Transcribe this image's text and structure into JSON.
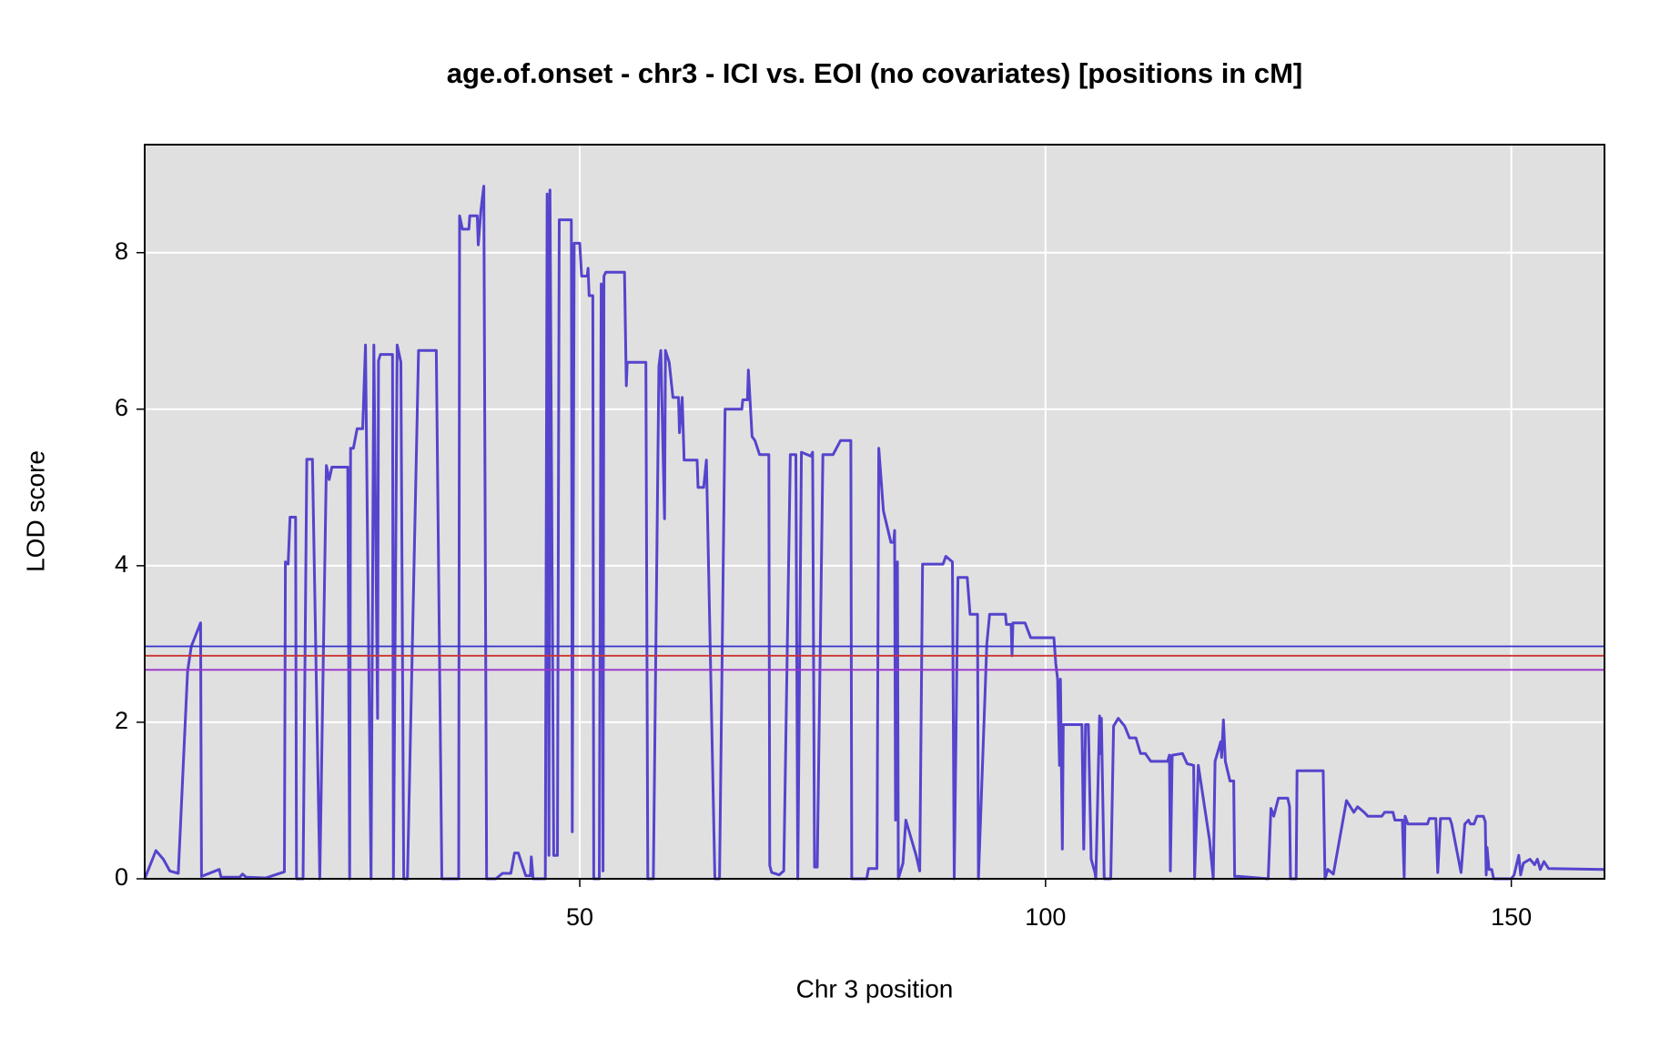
{
  "chart_data": {
    "type": "line",
    "title": "age.of.onset - chr3 - ICI vs. EOI (no covariates) [positions in cM]",
    "x_label": "Chr 3 position",
    "y_label": "LOD score",
    "xlim": [
      3.3,
      160
    ],
    "ylim": [
      0,
      9.38
    ],
    "xticks": [
      50,
      100,
      150
    ],
    "yticks": [
      0,
      2,
      4,
      6,
      8
    ],
    "grid": true,
    "color": "#5544cc",
    "hlines": [
      {
        "value": 2.97,
        "color": "#3333cc"
      },
      {
        "value": 2.85,
        "color": "#cc3333"
      },
      {
        "value": 2.67,
        "color": "#9933cc"
      }
    ],
    "x": [
      3.3,
      4.5,
      5.3,
      6.0,
      6.9,
      7.9,
      8.3,
      9.3,
      9.4,
      11.3,
      11.5,
      13.5,
      13.8,
      14.2,
      16.3,
      18.3,
      18.4,
      18.7,
      18.9,
      19.5,
      19.6,
      20.3,
      20.7,
      21.3,
      22.1,
      22.8,
      23.1,
      23.4,
      25.1,
      25.3,
      25.4,
      25.7,
      26.1,
      26.7,
      27.0,
      27.6,
      27.9,
      28.3,
      28.4,
      28.6,
      29.9,
      30.0,
      30.4,
      30.8,
      31.1,
      31.5,
      32.7,
      34.6,
      35.2,
      37.0,
      37.1,
      37.4,
      38.1,
      38.2,
      39.0,
      39.1,
      39.4,
      39.7,
      40.0,
      41.0,
      41.7,
      42.6,
      43.0,
      43.4,
      44.2,
      44.7,
      44.8,
      45.0,
      46.3,
      46.5,
      46.7,
      46.8,
      47.2,
      47.6,
      47.8,
      49.1,
      49.2,
      49.4,
      50.0,
      50.2,
      50.8,
      50.9,
      51.0,
      51.4,
      51.5,
      52.1,
      52.3,
      52.4,
      52.5,
      52.6,
      52.8,
      54.8,
      55.0,
      55.1,
      57.1,
      57.3,
      57.9,
      58.5,
      58.7,
      59.1,
      59.2,
      59.6,
      60.0,
      60.6,
      60.7,
      61.0,
      61.2,
      62.6,
      62.7,
      63.3,
      63.6,
      64.5,
      65.0,
      65.6,
      67.4,
      67.5,
      68.0,
      68.1,
      68.5,
      68.8,
      69.3,
      70.3,
      70.4,
      70.6,
      71.4,
      71.9,
      72.6,
      73.2,
      73.4,
      73.8,
      74.8,
      75.0,
      75.2,
      75.5,
      76.1,
      77.2,
      78.0,
      79.1,
      79.2,
      80.8,
      81.0,
      81.9,
      82.1,
      82.6,
      83.4,
      83.7,
      83.8,
      83.9,
      84.1,
      84.2,
      84.7,
      85.0,
      86.1,
      86.5,
      86.8,
      89.0,
      89.3,
      90.0,
      90.2,
      90.6,
      91.6,
      91.9,
      92.7,
      92.8,
      93.7,
      94.0,
      95.7,
      95.8,
      96.3,
      96.4,
      96.5,
      97.8,
      98.4,
      100.9,
      101.1,
      101.3,
      101.5,
      101.6,
      101.8,
      101.9,
      103.9,
      104.1,
      104.3,
      104.6,
      104.9,
      105.3,
      105.4,
      105.8,
      105.9,
      106.0,
      106.3,
      107.0,
      107.3,
      107.8,
      108.5,
      109.0,
      109.7,
      110.2,
      110.7,
      111.3,
      113.1,
      113.3,
      113.4,
      113.6,
      114.7,
      115.2,
      115.9,
      116.0,
      116.4,
      117.6,
      118.0,
      118.2,
      118.8,
      118.9,
      119.1,
      119.3,
      119.8,
      120.2,
      120.3,
      120.8,
      123.9,
      124.2,
      124.5,
      125.0,
      126.0,
      126.2,
      126.3,
      126.9,
      127.0,
      129.8,
      130.0,
      130.3,
      130.9,
      132.3,
      133.1,
      133.5,
      134.2,
      134.6,
      136.1,
      136.4,
      137.3,
      137.5,
      138.3,
      138.5,
      138.6,
      138.9,
      141.0,
      141.2,
      141.9,
      142.1,
      142.4,
      143.4,
      143.6,
      144.6,
      145.0,
      145.4,
      145.6,
      146.0,
      146.3,
      147.0,
      147.2,
      147.3,
      147.4,
      147.6,
      147.9,
      148.1,
      150.0,
      150.3,
      150.8,
      151.0,
      151.3,
      152.0,
      152.5,
      152.8,
      153.1,
      153.5,
      154.0,
      160.0
    ],
    "values": [
      0,
      0.36,
      0.25,
      0.1,
      0.07,
      2.65,
      2.97,
      3.27,
      0.03,
      0.12,
      0.02,
      0.02,
      0.06,
      0.02,
      0.01,
      0.09,
      4.05,
      4.02,
      4.62,
      4.62,
      0,
      0,
      5.36,
      5.36,
      0,
      5.28,
      5.1,
      5.26,
      5.26,
      0,
      5.5,
      5.5,
      5.75,
      5.75,
      6.82,
      0,
      6.82,
      2.05,
      6.62,
      6.7,
      6.7,
      0,
      6.82,
      6.6,
      0,
      0,
      6.75,
      6.75,
      0,
      0,
      8.47,
      8.3,
      8.3,
      8.47,
      8.47,
      8.1,
      8.55,
      8.85,
      0,
      0,
      0.07,
      0.07,
      0.33,
      0.33,
      0.04,
      0.04,
      0.28,
      0,
      0,
      8.75,
      0.3,
      8.8,
      0.3,
      0.3,
      8.42,
      8.42,
      0.6,
      8.12,
      8.12,
      7.7,
      7.7,
      7.8,
      7.45,
      7.45,
      0,
      0,
      7.6,
      7.5,
      0.1,
      7.7,
      7.75,
      7.75,
      6.3,
      6.6,
      6.6,
      0,
      0,
      6.55,
      6.75,
      4.6,
      6.75,
      6.6,
      6.15,
      6.15,
      5.7,
      6.15,
      5.35,
      5.35,
      5.0,
      5.0,
      5.35,
      0,
      0,
      6.0,
      6.0,
      6.12,
      6.12,
      6.5,
      5.65,
      5.6,
      5.42,
      5.42,
      0.17,
      0.08,
      0.05,
      0.1,
      5.42,
      5.42,
      0,
      5.45,
      5.4,
      5.45,
      0.15,
      0.15,
      5.42,
      5.42,
      5.6,
      5.6,
      0,
      0,
      0.13,
      0.13,
      5.5,
      4.7,
      4.3,
      4.3,
      4.45,
      0.75,
      4.05,
      0,
      0.2,
      0.75,
      0.3,
      0.1,
      4.02,
      4.02,
      4.12,
      4.05,
      0,
      3.85,
      3.85,
      3.38,
      3.38,
      0,
      3.0,
      3.38,
      3.38,
      3.25,
      3.25,
      2.85,
      3.27,
      3.27,
      3.08,
      3.08,
      2.75,
      2.55,
      1.45,
      2.55,
      0.38,
      1.97,
      1.97,
      0.38,
      1.97,
      1.97,
      0.25,
      0.08,
      0,
      2.08,
      1.6,
      2.05,
      0,
      0,
      1.95,
      2.05,
      1.95,
      1.8,
      1.8,
      1.6,
      1.6,
      1.5,
      1.5,
      1.58,
      0.1,
      1.58,
      1.6,
      1.47,
      1.45,
      0,
      1.45,
      0.5,
      0,
      1.5,
      1.75,
      1.55,
      2.03,
      1.5,
      1.25,
      1.25,
      0.03,
      0.03,
      0,
      0.9,
      0.8,
      1.03,
      1.03,
      0.92,
      0,
      0,
      1.38,
      1.38,
      0,
      0.12,
      0.06,
      1.0,
      0.85,
      0.92,
      0.85,
      0.8,
      0.8,
      0.85,
      0.85,
      0.75,
      0.75,
      0.02,
      0.8,
      0.7,
      0.7,
      0.77,
      0.77,
      0.08,
      0.77,
      0.77,
      0.7,
      0.08,
      0.7,
      0.75,
      0.7,
      0.7,
      0.8,
      0.8,
      0.73,
      0.05,
      0.4,
      0.12,
      0.12,
      0,
      0,
      0.05,
      0.3,
      0.05,
      0.2,
      0.25,
      0.18,
      0.25,
      0.12,
      0.22,
      0.13,
      0.12
    ]
  }
}
